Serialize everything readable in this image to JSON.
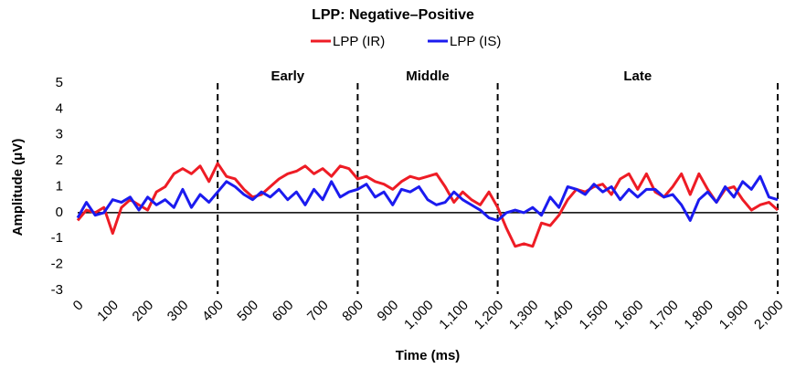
{
  "chart_data": {
    "type": "line",
    "title": "LPP: Negative–Positive",
    "x_label": "Time (ms)",
    "y_label": "Amplitude (μV)",
    "x": [
      0,
      25,
      50,
      75,
      100,
      125,
      150,
      175,
      200,
      225,
      250,
      275,
      300,
      325,
      350,
      375,
      400,
      425,
      450,
      475,
      500,
      525,
      550,
      575,
      600,
      625,
      650,
      675,
      700,
      725,
      750,
      775,
      800,
      825,
      850,
      875,
      900,
      925,
      950,
      975,
      1000,
      1025,
      1050,
      1075,
      1100,
      1125,
      1150,
      1175,
      1200,
      1225,
      1250,
      1275,
      1300,
      1325,
      1350,
      1375,
      1400,
      1425,
      1450,
      1475,
      1500,
      1525,
      1550,
      1575,
      1600,
      1625,
      1650,
      1675,
      1700,
      1725,
      1750,
      1775,
      1800,
      1825,
      1850,
      1875,
      1900,
      1925,
      1950,
      1975,
      2000
    ],
    "series": [
      {
        "name": "LPP (IR)",
        "color": "#ee1c25",
        "values": [
          -0.3,
          0.1,
          0,
          0.2,
          -0.8,
          0.2,
          0.5,
          0.3,
          0.1,
          0.8,
          1.0,
          1.5,
          1.7,
          1.5,
          1.8,
          1.2,
          1.9,
          1.4,
          1.3,
          0.9,
          0.6,
          0.7,
          1.0,
          1.3,
          1.5,
          1.6,
          1.8,
          1.5,
          1.7,
          1.4,
          1.8,
          1.7,
          1.3,
          1.4,
          1.2,
          1.1,
          0.9,
          1.2,
          1.4,
          1.3,
          1.4,
          1.5,
          1.0,
          0.4,
          0.8,
          0.5,
          0.3,
          0.8,
          0.2,
          -0.6,
          -1.3,
          -1.2,
          -1.3,
          -0.4,
          -0.5,
          -0.1,
          0.5,
          0.9,
          0.8,
          1.0,
          1.1,
          0.7,
          1.3,
          1.5,
          0.9,
          1.5,
          0.8,
          0.6,
          1.0,
          1.5,
          0.7,
          1.5,
          0.9,
          0.4,
          0.9,
          1.0,
          0.5,
          0.1,
          0.3,
          0.4,
          0.1
        ]
      },
      {
        "name": "LPP (IS)",
        "color": "#1b1bef",
        "values": [
          -0.2,
          0.4,
          -0.1,
          0,
          0.5,
          0.4,
          0.6,
          0.1,
          0.6,
          0.3,
          0.5,
          0.2,
          0.9,
          0.2,
          0.7,
          0.4,
          0.8,
          1.2,
          1.0,
          0.7,
          0.5,
          0.8,
          0.6,
          0.9,
          0.5,
          0.8,
          0.3,
          0.9,
          0.5,
          1.2,
          0.6,
          0.8,
          0.9,
          1.1,
          0.6,
          0.8,
          0.3,
          0.9,
          0.8,
          1.0,
          0.5,
          0.3,
          0.4,
          0.8,
          0.5,
          0.3,
          0.1,
          -0.2,
          -0.3,
          0,
          0.1,
          0,
          0.2,
          -0.1,
          0.6,
          0.2,
          1.0,
          0.9,
          0.7,
          1.1,
          0.8,
          1.0,
          0.5,
          0.9,
          0.6,
          0.9,
          0.9,
          0.6,
          0.7,
          0.3,
          -0.3,
          0.5,
          0.8,
          0.4,
          1.0,
          0.6,
          1.2,
          0.9,
          1.4,
          0.6,
          0.5
        ]
      }
    ],
    "xlim": [
      0,
      2000
    ],
    "xticks": [
      0,
      100,
      200,
      300,
      400,
      500,
      600,
      700,
      800,
      900,
      {
        "value": 1000,
        "label": "1,000"
      },
      {
        "value": 1100,
        "label": "1,100"
      },
      {
        "value": 1200,
        "label": "1,200"
      },
      {
        "value": 1300,
        "label": "1,300"
      },
      {
        "value": 1400,
        "label": "1,400"
      },
      {
        "value": 1500,
        "label": "1,500"
      },
      {
        "value": 1600,
        "label": "1,600"
      },
      {
        "value": 1700,
        "label": "1,700"
      },
      {
        "value": 1800,
        "label": "1,800"
      },
      {
        "value": 1900,
        "label": "1,900"
      },
      {
        "value": 2000,
        "label": "2,000"
      }
    ],
    "ylim": [
      -3,
      5
    ],
    "yticks": [
      -3,
      -2,
      -1,
      0,
      1,
      2,
      3,
      4,
      5
    ],
    "vlines": [
      400,
      800,
      1200,
      2000
    ],
    "vline_labels": [
      "Early",
      "Middle",
      "Late"
    ],
    "legend": "top",
    "grid": false
  }
}
